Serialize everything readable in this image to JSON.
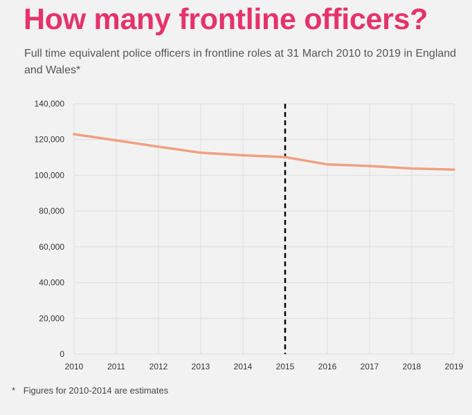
{
  "title": "How many frontline officers?",
  "subtitle": "Full time equivalent police officers in frontline roles at 31 March 2010 to 2019 in England and Wales*",
  "footnote": {
    "marker": "*",
    "text": "Figures for 2010-2014 are estimates"
  },
  "colors": {
    "title": "#e5336a",
    "line": "#f0a080",
    "grid": "#dddddd",
    "marker_line": "#000000"
  },
  "chart_data": {
    "type": "line",
    "title": "How many frontline officers?",
    "xlabel": "",
    "ylabel": "",
    "x": [
      2010,
      2011,
      2012,
      2013,
      2014,
      2015,
      2016,
      2017,
      2018,
      2019
    ],
    "x_tick_labels": [
      "2010",
      "2011",
      "2012",
      "2013",
      "2014",
      "2015",
      "2016",
      "2017",
      "2018",
      "2019"
    ],
    "y_tick_values": [
      0,
      20000,
      40000,
      60000,
      80000,
      100000,
      120000,
      140000
    ],
    "y_tick_labels": [
      "0",
      "20,000",
      "40,000",
      "60,000",
      "80,000",
      "100,000",
      "120,000",
      "140,000"
    ],
    "ylim": [
      0,
      140000
    ],
    "xlim": [
      2010,
      2019
    ],
    "grid": true,
    "series": [
      {
        "values": [
          123000,
          119500,
          116000,
          112600,
          111200,
          110200,
          106100,
          105200,
          103800,
          103200
        ]
      }
    ],
    "annotations": [
      {
        "type": "vertical-dashed-line",
        "x": 2015
      }
    ]
  }
}
